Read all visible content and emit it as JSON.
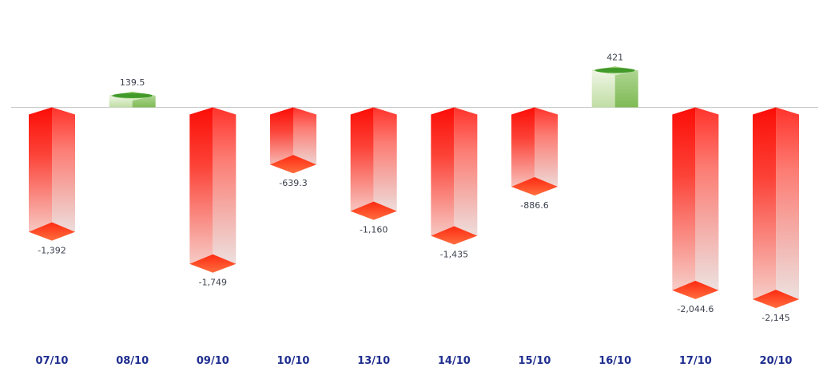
{
  "chart_data": {
    "type": "bar",
    "style": "3d-gradient-columns",
    "title": "",
    "xlabel": "",
    "ylabel": "",
    "categories": [
      "07/10",
      "08/10",
      "09/10",
      "10/10",
      "13/10",
      "14/10",
      "15/10",
      "16/10",
      "17/10",
      "20/10"
    ],
    "values": [
      -1392,
      139.5,
      -1749,
      -639.3,
      -1160,
      -1435,
      -886.6,
      421,
      -2044.6,
      -2145
    ],
    "value_labels": [
      "-1,392",
      "139.5",
      "-1,749",
      "-639.3",
      "-1,160",
      "-1,435",
      "-886.6",
      "421",
      "-2,044.6",
      "-2,145"
    ],
    "baseline": 0,
    "ylim": [
      -2500,
      700
    ],
    "grid": false,
    "legend": false,
    "colors": {
      "negative_face_left_top": "#fb0d06",
      "negative_face_left_mid": "#fc4237",
      "negative_face_left_bottom": "#f6d7d2",
      "negative_face_right_top": "#ff332b",
      "negative_face_right_mid": "#fc7d74",
      "negative_face_right_bottom": "#ebe8e7",
      "negative_cap_top": "#fe2a12",
      "negative_cap_bottom": "#ff6e3e",
      "positive_face_left_top": "#eef6e5",
      "positive_face_left_bottom": "#c0dda4",
      "positive_face_right_top": "#aed591",
      "positive_face_right_bottom": "#7fba55",
      "positive_top_back": "#8cc868",
      "positive_top_front": "#dff0ce",
      "positive_top_lens": "#35921d",
      "axis_line": "#c6c6c6",
      "value_label": "#3d424e",
      "date_label": "#1f2e8f",
      "background": "#ffffff"
    }
  }
}
